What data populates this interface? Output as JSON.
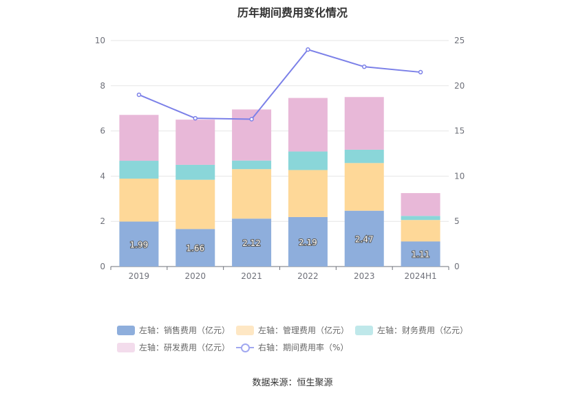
{
  "chart_data": {
    "type": "bar",
    "stacked": true,
    "title": "历年期间费用变化情况",
    "categories": [
      "2019",
      "2020",
      "2021",
      "2022",
      "2023",
      "2024H1"
    ],
    "left_axis": {
      "min": 0,
      "max": 10,
      "ticks": [
        "0",
        "2",
        "4",
        "6",
        "8",
        "10"
      ]
    },
    "right_axis": {
      "min": 0,
      "max": 25,
      "ticks": [
        "0",
        "5",
        "10",
        "15",
        "20",
        "25"
      ]
    },
    "grid": true,
    "legend_position": "bottom",
    "series": [
      {
        "name": "左轴：销售费用（亿元）",
        "axis": "left",
        "color": "#8eaedc",
        "values": [
          1.99,
          1.66,
          2.12,
          2.19,
          2.47,
          1.11
        ],
        "labels": [
          "1.99",
          "1.66",
          "2.12",
          "2.19",
          "2.47",
          "1.11"
        ]
      },
      {
        "name": "左轴：管理费用（亿元）",
        "axis": "left",
        "color": "#fed898",
        "values": [
          1.9,
          2.18,
          2.19,
          2.08,
          2.11,
          0.95
        ]
      },
      {
        "name": "左轴：财务费用（亿元）",
        "axis": "left",
        "color": "#8ad6d9",
        "values": [
          0.79,
          0.66,
          0.38,
          0.82,
          0.59,
          0.18
        ]
      },
      {
        "name": "左轴：研发费用（亿元）",
        "axis": "left",
        "color": "#e8b8d8",
        "values": [
          2.03,
          2.0,
          2.26,
          2.37,
          2.33,
          1.01
        ]
      },
      {
        "name": "右轴：期间费用率（%）",
        "axis": "right",
        "type": "line",
        "color": "#7b80e8",
        "values": [
          19.0,
          16.4,
          16.3,
          24.0,
          22.1,
          21.5
        ]
      }
    ],
    "source": "数据来源：恒生聚源"
  },
  "legend": [
    {
      "label": "左轴：销售费用（亿元）",
      "color": "#8eaedc"
    },
    {
      "label": "左轴：管理费用（亿元）",
      "color": "#fee7c4"
    },
    {
      "label": "左轴：财务费用（亿元）",
      "color": "#bfe8ea"
    },
    {
      "label": "左轴：研发费用（亿元）",
      "color": "#f3dcec"
    },
    {
      "label": "右轴：期间费用率（%）",
      "color": "#a0a7f0"
    }
  ]
}
